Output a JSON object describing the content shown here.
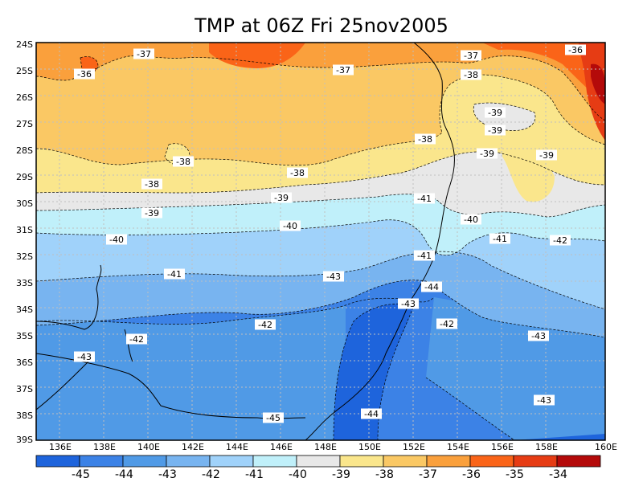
{
  "title": "TMP at 06Z Fri 25nov2005",
  "lat_labels": [
    "24S",
    "25S",
    "26S",
    "27S",
    "28S",
    "29S",
    "30S",
    "31S",
    "32S",
    "33S",
    "34S",
    "35S",
    "36S",
    "37S",
    "38S",
    "39S"
  ],
  "lon_labels": [
    "136E",
    "138E",
    "140E",
    "142E",
    "144E",
    "146E",
    "148E",
    "150E",
    "152E",
    "154E",
    "156E",
    "158E",
    "160E"
  ],
  "colorbar": {
    "colors": [
      "#1e64dc",
      "#3c82e6",
      "#509ae6",
      "#78b4f0",
      "#a0d2fa",
      "#c0f0fa",
      "#e8e8e8",
      "#fae68c",
      "#fac864",
      "#faa03c",
      "#fa6418",
      "#e63c14",
      "#b40a0a"
    ],
    "labels": [
      "-45",
      "-44",
      "-43",
      "-42",
      "-41",
      "-40",
      "-39",
      "-38",
      "-37",
      "-36",
      "-35",
      "-34"
    ]
  },
  "contour_labels": [
    "-36",
    "-37",
    "-37",
    "-37",
    "-36",
    "-38",
    "-38",
    "-39",
    "-39",
    "-38",
    "-39",
    "-39",
    "-38",
    "-38",
    "-39",
    "-39",
    "-41",
    "-40",
    "-40",
    "-41",
    "-40",
    "-42",
    "-41",
    "-41",
    "-43",
    "-44",
    "-43",
    "-42",
    "-42",
    "-42",
    "-43",
    "-43",
    "-45",
    "-44",
    "-43"
  ]
}
